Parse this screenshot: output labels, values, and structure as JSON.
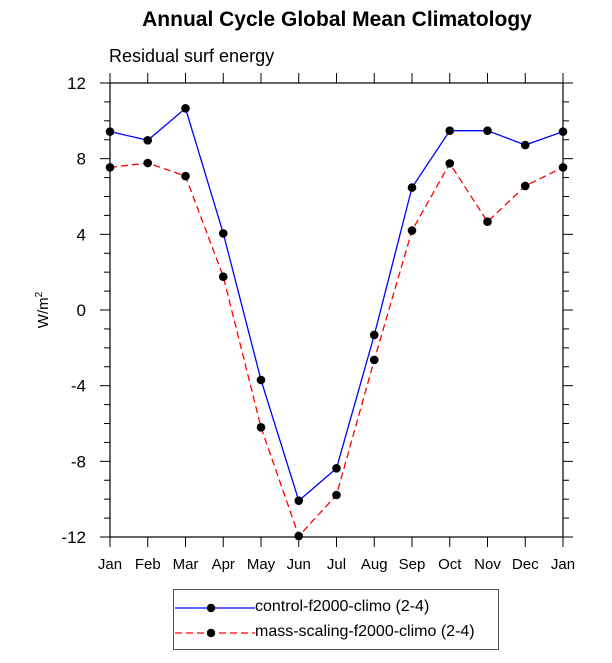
{
  "chart_data": {
    "type": "line",
    "title": "Annual Cycle Global Mean Climatology",
    "subtitle": "Residual surf energy",
    "xlabel": "",
    "ylabel": "W/m²",
    "categories": [
      "Jan",
      "Feb",
      "Mar",
      "Apr",
      "May",
      "Jun",
      "Jul",
      "Aug",
      "Sep",
      "Oct",
      "Nov",
      "Dec",
      "Jan"
    ],
    "ylim": [
      -12,
      12
    ],
    "yticks": [
      -12,
      -8,
      -4,
      0,
      4,
      8,
      12
    ],
    "ytick_labels": [
      "-12",
      "-8",
      "-4",
      "0",
      "4",
      "8",
      "12"
    ],
    "yminor_step": 1,
    "grid": false,
    "legend_position": "bottom",
    "series": [
      {
        "name": "control-f2000-climo (2-4)",
        "color": "#0000ff",
        "line_style": "solid",
        "marker": "filled-circle",
        "marker_color": "#000000",
        "values": [
          9.43,
          8.97,
          10.66,
          4.05,
          -3.7,
          -10.08,
          -8.37,
          -1.32,
          6.47,
          9.48,
          9.48,
          8.72,
          9.43
        ]
      },
      {
        "name": "mass-scaling-f2000-climo (2-4)",
        "color": "#ff0000",
        "line_style": "dashed",
        "marker": "filled-circle",
        "marker_color": "#000000",
        "values": [
          7.54,
          7.77,
          7.08,
          1.76,
          -6.2,
          -11.95,
          -9.78,
          -2.64,
          4.2,
          7.75,
          4.67,
          6.56,
          7.54
        ]
      }
    ]
  }
}
